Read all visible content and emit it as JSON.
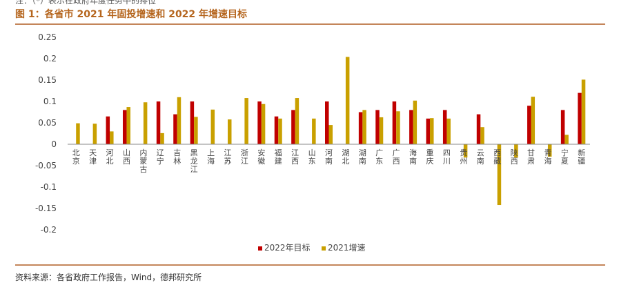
{
  "header": {
    "top_note": "注：（*）表示在政府年度任务中的排位",
    "figure_title": "图 1：各省市 2021 年固投增速和 2022 年增速目标"
  },
  "footer": {
    "source": "资料来源：各省政府工作报告，Wind，德邦研究所"
  },
  "chart_data": {
    "type": "bar",
    "title": "",
    "xlabel": "",
    "ylabel": "",
    "ylim": [
      -0.2,
      0.25
    ],
    "yticks": [
      0.25,
      0.2,
      0.15,
      0.1,
      0.05,
      0,
      -0.05,
      -0.1,
      -0.15,
      -0.2
    ],
    "ytick_labels": [
      "0.25",
      "0.2",
      "0.15",
      "0.1",
      "0.05",
      "0",
      "-0.05",
      "-0.1",
      "-0.15",
      "-0.2"
    ],
    "legend_position": "bottom",
    "grid": false,
    "categories": [
      "北京",
      "天津",
      "河北",
      "山西",
      "内蒙古",
      "辽宁",
      "吉林",
      "黑龙江",
      "上海",
      "江苏",
      "浙江",
      "安徽",
      "福建",
      "江西",
      "山东",
      "河南",
      "湖北",
      "湖南",
      "广东",
      "广西",
      "海南",
      "重庆",
      "四川",
      "贵州",
      "云南",
      "西藏",
      "陕西",
      "甘肃",
      "青海",
      "宁夏",
      "新疆"
    ],
    "series": [
      {
        "name": "2022年目标",
        "color": "#c00000",
        "values": [
          null,
          null,
          0.065,
          0.08,
          null,
          0.1,
          0.07,
          0.1,
          null,
          null,
          null,
          0.1,
          0.065,
          0.08,
          null,
          0.1,
          null,
          0.075,
          0.08,
          0.1,
          0.08,
          0.06,
          0.08,
          null,
          0.07,
          null,
          null,
          0.09,
          null,
          0.08,
          0.12
        ]
      },
      {
        "name": "2021增速",
        "color": "#c9a000",
        "values": [
          0.049,
          0.048,
          0.03,
          0.087,
          0.098,
          0.026,
          0.11,
          0.064,
          0.081,
          0.058,
          0.108,
          0.094,
          0.06,
          0.108,
          0.06,
          0.045,
          0.204,
          0.08,
          0.063,
          0.077,
          0.102,
          0.061,
          0.06,
          -0.031,
          0.04,
          -0.142,
          -0.031,
          0.111,
          -0.029,
          0.022,
          0.151
        ]
      }
    ]
  }
}
